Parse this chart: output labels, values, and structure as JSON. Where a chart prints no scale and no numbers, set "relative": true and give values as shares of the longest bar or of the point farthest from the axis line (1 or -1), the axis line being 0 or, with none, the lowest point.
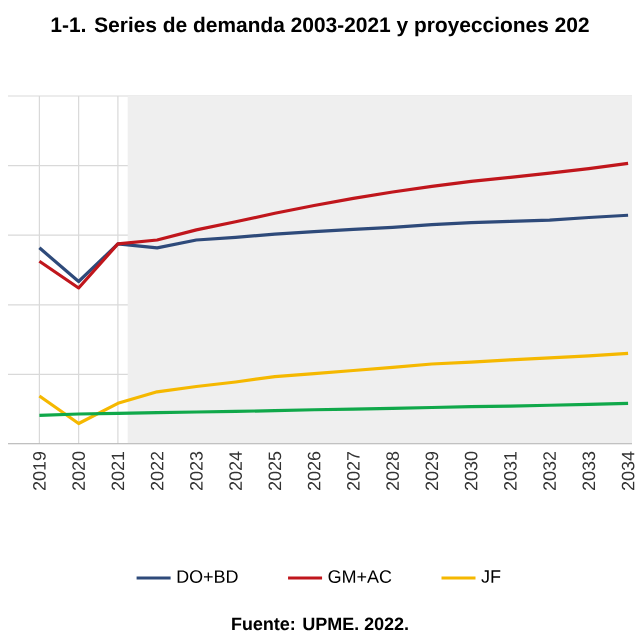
{
  "chart_data": {
    "type": "line",
    "title": "1-1. Series de demanda 2003-2021 y proyecciones 202",
    "relative": true,
    "x": [
      2019,
      2020,
      2021,
      2022,
      2023,
      2024,
      2025,
      2026,
      2027,
      2028,
      2029,
      2030,
      2031,
      2032,
      2033,
      2034
    ],
    "xlim": [
      2018.2,
      2034.1
    ],
    "xticks": [
      2019,
      2020,
      2021,
      2022,
      2023,
      2024,
      2025,
      2026,
      2027,
      2028,
      2029,
      2030,
      2031,
      2032,
      2033,
      2034
    ],
    "series": [
      {
        "name": "DO+BD",
        "color": "#2e4a7a",
        "values": [
          0.699,
          0.579,
          0.713,
          0.699,
          0.727,
          0.736,
          0.748,
          0.757,
          0.765,
          0.772,
          0.782,
          0.789,
          0.793,
          0.798,
          0.807,
          0.815
        ]
      },
      {
        "name": "GM+AC",
        "color": "#c0161c",
        "values": [
          0.651,
          0.556,
          0.713,
          0.727,
          0.763,
          0.792,
          0.822,
          0.85,
          0.875,
          0.898,
          0.918,
          0.936,
          0.95,
          0.965,
          0.981,
          1
        ]
      },
      {
        "name": "JF",
        "color": "#f5b800",
        "values": [
          0.171,
          0.073,
          0.145,
          0.186,
          0.205,
          0.221,
          0.24,
          0.251,
          0.262,
          0.273,
          0.285,
          0.292,
          0.3,
          0.307,
          0.314,
          0.323
        ]
      },
      {
        "color": "#10a84a",
        "values": [
          0.102,
          0.107,
          0.109,
          0.112,
          0.114,
          0.116,
          0.119,
          0.122,
          0.124,
          0.127,
          0.13,
          0.133,
          0.135,
          0.138,
          0.141,
          0.145
        ]
      }
    ],
    "bands": [
      {
        "axis": "x",
        "from": 2021.25,
        "to": 2034.1,
        "color": "#efefef"
      }
    ],
    "grid": true,
    "legend": "bottom",
    "marker": "none",
    "line_style": "solid",
    "annotations": [
      "Fuente: UPME. 2022."
    ]
  }
}
